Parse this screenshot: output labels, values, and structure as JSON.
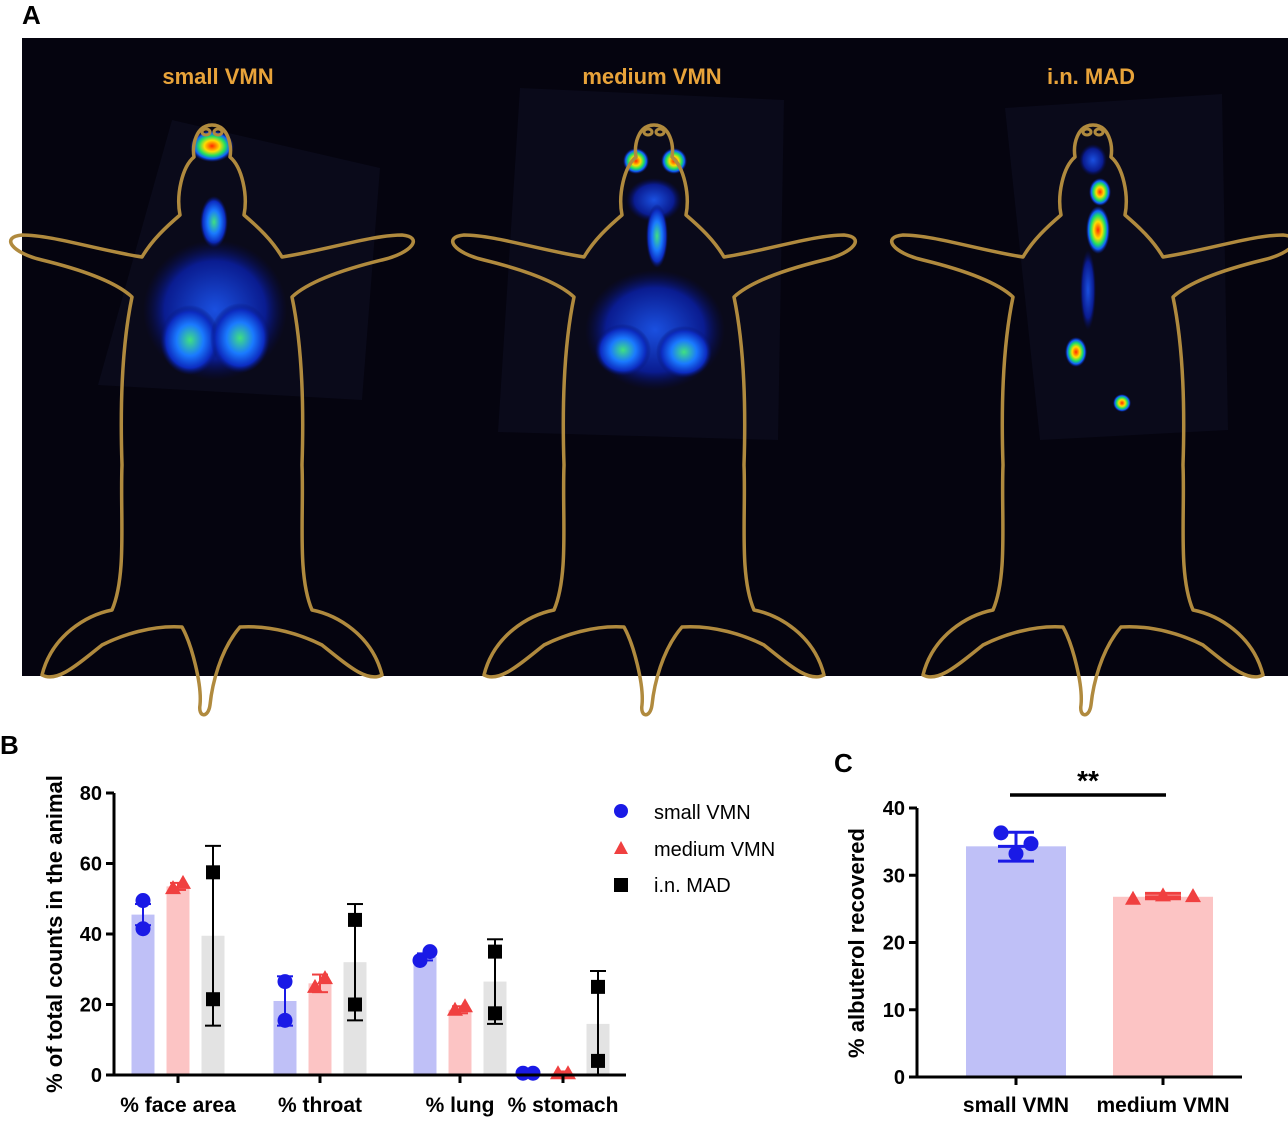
{
  "panels": {
    "a_letter": "A",
    "b_letter": "B",
    "c_letter": "C"
  },
  "imaging": {
    "labels": [
      "small VMN",
      "medium VMN",
      "i.n. MAD"
    ],
    "label_color": "#E8A33A",
    "background_color": "#05040F",
    "outline_color": "#B08A3E"
  },
  "colors": {
    "small": "#1A1AE6",
    "medium": "#F04040",
    "mad": "#000000",
    "small_bar": "#BFC0F7",
    "medium_bar": "#FCC4C4",
    "mad_bar": "#E3E3E3"
  },
  "chart_data": [
    {
      "type": "bar",
      "panel": "B",
      "ylabel": "% of total counts in the animal",
      "ylim": [
        0,
        80
      ],
      "yticks": [
        0,
        20,
        40,
        60,
        80
      ],
      "categories": [
        "% face area",
        "% throat",
        "% lung",
        "% stomach"
      ],
      "legend": [
        "small VMN",
        "medium VMN",
        "i.n. MAD"
      ],
      "legend_position": "top-right",
      "series": [
        {
          "name": "small VMN",
          "marker": "circle",
          "means": [
            45.5,
            21,
            33.5,
            0.5
          ],
          "error_low": [
            42.5,
            14,
            32.5,
            0
          ],
          "error_high": [
            48.5,
            28,
            34.5,
            1
          ],
          "points": [
            [
              49.5,
              41.5
            ],
            [
              26.5,
              15.5
            ],
            [
              32.5,
              35
            ],
            [
              0.5,
              0.5
            ]
          ]
        },
        {
          "name": "medium VMN",
          "marker": "triangle",
          "means": [
            53.5,
            26,
            18.5,
            0.5
          ],
          "error_low": [
            52.5,
            23.5,
            17.5,
            0
          ],
          "error_high": [
            54.5,
            28.5,
            19.5,
            1
          ],
          "points": [
            [
              53,
              54.5
            ],
            [
              25,
              27.5
            ],
            [
              18.5,
              19.5
            ],
            [
              0.5,
              0.5
            ]
          ]
        },
        {
          "name": "i.n. MAD",
          "marker": "square",
          "means": [
            39.5,
            32,
            26.5,
            14.5
          ],
          "error_low": [
            14,
            15.5,
            14.5,
            0
          ],
          "error_high": [
            65,
            48.5,
            38.5,
            29.5
          ],
          "points": [
            [
              57.5,
              21.5
            ],
            [
              44,
              20
            ],
            [
              35,
              17.5
            ],
            [
              25,
              4
            ]
          ]
        }
      ]
    },
    {
      "type": "bar",
      "panel": "C",
      "ylabel": "% albuterol recovered",
      "ylim": [
        0,
        40
      ],
      "yticks": [
        0,
        10,
        20,
        30,
        40
      ],
      "categories": [
        "small VMN",
        "medium VMN"
      ],
      "series": [
        {
          "name": "small VMN",
          "marker": "circle",
          "mean": 34.3,
          "error_low": 32.1,
          "error_high": 36.4,
          "points": [
            36.3,
            33.2,
            34.7
          ]
        },
        {
          "name": "medium VMN",
          "marker": "triangle",
          "mean": 26.8,
          "error_low": 26.5,
          "error_high": 27.3,
          "points": [
            26.5,
            27.0,
            26.9
          ]
        }
      ],
      "significance": "**"
    }
  ]
}
